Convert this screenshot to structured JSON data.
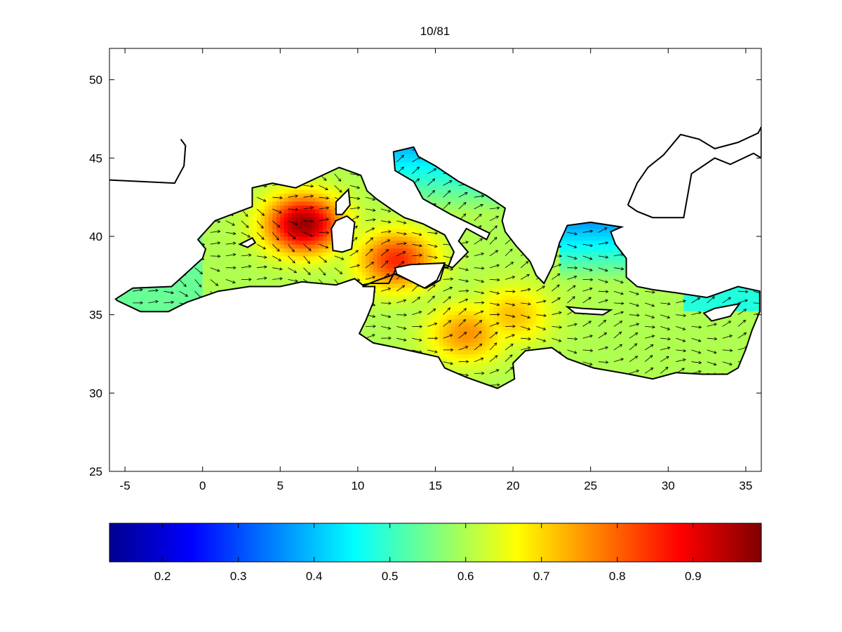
{
  "chart_data": {
    "type": "heatmap",
    "title": "10/81",
    "xlabel": "",
    "ylabel": "",
    "xlim": [
      -6,
      36
    ],
    "ylim": [
      25,
      52
    ],
    "x_ticks": [
      -5,
      0,
      5,
      10,
      15,
      20,
      25,
      30,
      35
    ],
    "y_ticks": [
      25,
      30,
      35,
      40,
      45,
      50
    ],
    "colormap": "jet",
    "colorbar": {
      "placement": "bottom",
      "range": [
        0.13,
        0.99
      ],
      "ticks": [
        0.2,
        0.3,
        0.4,
        0.5,
        0.6,
        0.7,
        0.8,
        0.9
      ]
    },
    "field": {
      "description_free": true,
      "hotspots": [
        {
          "lon": 6.5,
          "lat": 40.8,
          "value": 0.97
        },
        {
          "lon": 12.5,
          "lat": 38.5,
          "value": 0.85
        },
        {
          "lon": 17.0,
          "lat": 33.8,
          "value": 0.76
        },
        {
          "lon": 20.0,
          "lat": 35.0,
          "value": 0.72
        }
      ],
      "background_value": 0.6
    },
    "vectors": "wind direction arrows over sea grid (~1° spacing)"
  }
}
